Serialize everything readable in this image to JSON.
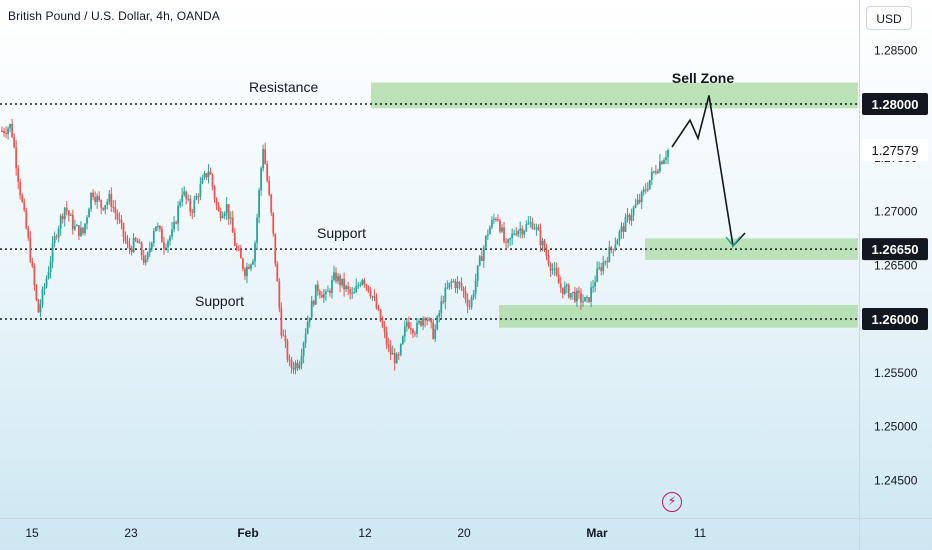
{
  "header": {
    "title": "British Pound / U.S. Dollar, 4h, OANDA",
    "currency_button": "USD"
  },
  "annotations": {
    "resistance": "Resistance",
    "support_upper": "Support",
    "support_lower": "Support",
    "sell_zone": "Sell Zone"
  },
  "colors": {
    "up": "#26a69a",
    "down": "#ef5350",
    "zone": "#a8d9a0",
    "label_bg": "#131722",
    "event_icon": "#c2185b"
  },
  "icons": {
    "event": "lightning-bolt-icon"
  },
  "chart_data": {
    "type": "candlestick",
    "title": "British Pound / U.S. Dollar, 4h, OANDA",
    "ylim": [
      1.242,
      1.2905
    ],
    "y_ticks": [
      "1.28500",
      "1.28000",
      "1.27500",
      "1.27000",
      "1.26500",
      "1.26000",
      "1.25500",
      "1.25000",
      "1.24500"
    ],
    "x_ticks": [
      {
        "label": "15",
        "date": "2024-01-15"
      },
      {
        "label": "23",
        "date": "2024-01-23"
      },
      {
        "label": "Feb",
        "date": "2024-02-01"
      },
      {
        "label": "12",
        "date": "2024-02-12"
      },
      {
        "label": "20",
        "date": "2024-02-20"
      },
      {
        "label": "Mar",
        "date": "2024-03-01"
      },
      {
        "label": "11",
        "date": "2024-03-11"
      }
    ],
    "last_price": "1.27579",
    "levels": [
      {
        "name": "Resistance",
        "value": 1.28,
        "label": "1.28000"
      },
      {
        "name": "Support",
        "value": 1.2665,
        "label": "1.26650"
      },
      {
        "name": "Support",
        "value": 1.26,
        "label": "1.26000"
      }
    ],
    "zones": [
      {
        "name": "Sell Zone",
        "from": 1.2796,
        "to": 1.282
      },
      {
        "name": "Support",
        "from": 1.2655,
        "to": 1.2675
      },
      {
        "name": "Support",
        "from": 1.2592,
        "to": 1.2613
      }
    ],
    "projection_path": [
      1.276,
      1.2785,
      1.2768,
      1.2808,
      1.2668,
      1.268
    ],
    "anchors": [
      1.2775,
      1.278,
      1.272,
      1.2668,
      1.2605,
      1.264,
      1.268,
      1.2705,
      1.2685,
      1.268,
      1.272,
      1.2705,
      1.2712,
      1.269,
      1.2665,
      1.2672,
      1.265,
      1.269,
      1.267,
      1.268,
      1.272,
      1.27,
      1.2722,
      1.274,
      1.2698,
      1.2705,
      1.2665,
      1.2645,
      1.266,
      1.2762,
      1.269,
      1.2592,
      1.2555,
      1.256,
      1.26,
      1.263,
      1.262,
      1.264,
      1.263,
      1.262,
      1.264,
      1.2625,
      1.26,
      1.257,
      1.256,
      1.2598,
      1.259,
      1.2605,
      1.2585,
      1.262,
      1.2635,
      1.263,
      1.2612,
      1.265,
      1.2682,
      1.2698,
      1.2665,
      1.2683,
      1.2685,
      1.269,
      1.267,
      1.265,
      1.263,
      1.2625,
      1.262,
      1.2615,
      1.264,
      1.2655,
      1.267,
      1.2685,
      1.27,
      1.2712,
      1.273,
      1.2745,
      1.2757
    ]
  }
}
